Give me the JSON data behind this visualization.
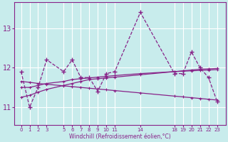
{
  "xlabel": "Windchill (Refroidissement éolien,°C)",
  "background_color": "#c8ecec",
  "line_color": "#882288",
  "grid_color": "#ffffff",
  "series1": [
    [
      0,
      11.9
    ],
    [
      1,
      11.0
    ],
    [
      2,
      11.5
    ],
    [
      3,
      12.2
    ],
    [
      5,
      11.9
    ],
    [
      6,
      12.2
    ],
    [
      7,
      11.75
    ],
    [
      8,
      11.75
    ],
    [
      9,
      11.4
    ],
    [
      10,
      11.85
    ],
    [
      11,
      11.9
    ],
    [
      14,
      13.4
    ],
    [
      18,
      11.85
    ],
    [
      19,
      11.85
    ],
    [
      20,
      12.4
    ],
    [
      21,
      12.0
    ],
    [
      22,
      11.75
    ],
    [
      23,
      11.15
    ]
  ],
  "series2": [
    [
      0,
      11.5
    ],
    [
      1,
      11.5
    ],
    [
      2,
      11.55
    ],
    [
      3,
      11.6
    ],
    [
      5,
      11.65
    ],
    [
      6,
      11.7
    ],
    [
      7,
      11.72
    ],
    [
      8,
      11.74
    ],
    [
      9,
      11.76
    ],
    [
      10,
      11.78
    ],
    [
      11,
      11.8
    ],
    [
      14,
      11.85
    ],
    [
      18,
      11.9
    ],
    [
      19,
      11.91
    ],
    [
      20,
      11.92
    ],
    [
      21,
      11.93
    ],
    [
      22,
      11.94
    ],
    [
      23,
      11.95
    ]
  ],
  "series3": [
    [
      0,
      11.25
    ],
    [
      1,
      11.3
    ],
    [
      2,
      11.38
    ],
    [
      3,
      11.45
    ],
    [
      5,
      11.55
    ],
    [
      6,
      11.6
    ],
    [
      7,
      11.65
    ],
    [
      8,
      11.7
    ],
    [
      9,
      11.72
    ],
    [
      10,
      11.74
    ],
    [
      11,
      11.76
    ],
    [
      14,
      11.82
    ],
    [
      18,
      11.9
    ],
    [
      19,
      11.92
    ],
    [
      20,
      11.94
    ],
    [
      21,
      11.96
    ],
    [
      22,
      11.97
    ],
    [
      23,
      11.98
    ]
  ],
  "series4": [
    [
      0,
      11.65
    ],
    [
      1,
      11.63
    ],
    [
      2,
      11.6
    ],
    [
      3,
      11.58
    ],
    [
      5,
      11.54
    ],
    [
      6,
      11.52
    ],
    [
      7,
      11.5
    ],
    [
      8,
      11.48
    ],
    [
      9,
      11.46
    ],
    [
      10,
      11.44
    ],
    [
      11,
      11.42
    ],
    [
      14,
      11.36
    ],
    [
      18,
      11.28
    ],
    [
      19,
      11.26
    ],
    [
      20,
      11.24
    ],
    [
      21,
      11.22
    ],
    [
      22,
      11.2
    ],
    [
      23,
      11.18
    ]
  ],
  "yticks": [
    11,
    12,
    13
  ],
  "xtick_positions": [
    0,
    1,
    2,
    3,
    5,
    6,
    7,
    8,
    9,
    10,
    11,
    14,
    18,
    19,
    20,
    21,
    22,
    23
  ],
  "xtick_labels": [
    "0",
    "1",
    "2",
    "3",
    "5",
    "6",
    "7",
    "8",
    "9",
    "10",
    "11",
    "14",
    "18",
    "19",
    "20",
    "21",
    "22",
    "23"
  ],
  "ylim": [
    10.55,
    13.65
  ],
  "xlim": [
    -0.8,
    24.0
  ]
}
